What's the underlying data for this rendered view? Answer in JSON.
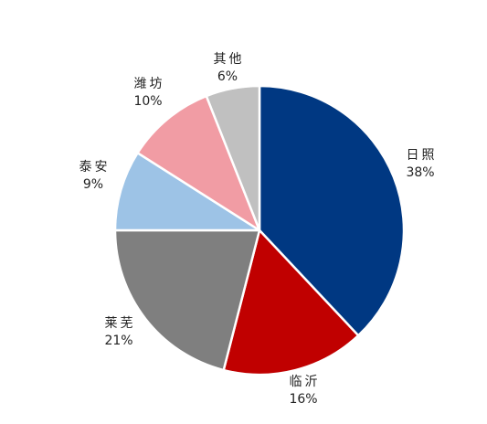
{
  "chart_data": {
    "type": "pie",
    "start_angle_deg": 0,
    "direction": "clockwise",
    "slices": [
      {
        "name": "日照",
        "value": 38,
        "label": "38%",
        "color": "#003882"
      },
      {
        "name": "临沂",
        "value": 16,
        "label": "16%",
        "color": "#C00000"
      },
      {
        "name": "莱芜",
        "value": 21,
        "label": "21%",
        "color": "#7F7F7F"
      },
      {
        "name": "泰安",
        "value": 9,
        "label": "9%",
        "color": "#9DC3E6"
      },
      {
        "name": "潍坊",
        "value": 10,
        "label": "10%",
        "color": "#F19CA4"
      },
      {
        "name": "其他",
        "value": 6,
        "label": "6%",
        "color": "#C0C0C0"
      }
    ],
    "legend": "none"
  }
}
